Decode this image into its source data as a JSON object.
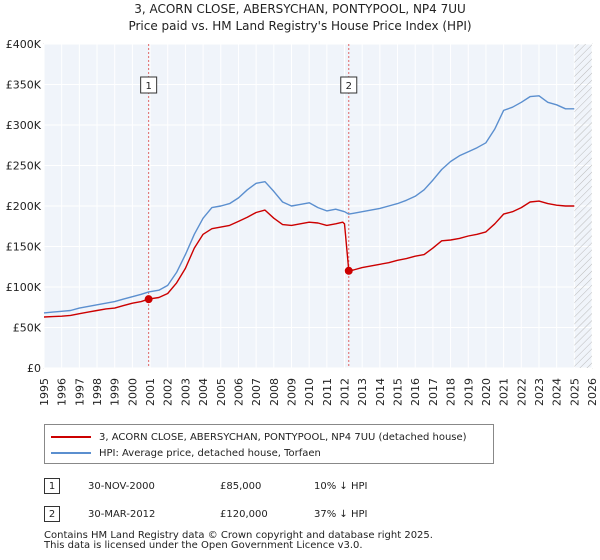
{
  "chart_data": {
    "type": "line",
    "title": "3, ACORN CLOSE, ABERSYCHAN, PONTYPOOL, NP4 7UU",
    "subtitle": "Price paid vs. HM Land Registry's House Price Index (HPI)",
    "xlabel": "",
    "ylabel": "",
    "xlim": [
      1995,
      2026
    ],
    "ylim": [
      0,
      400000
    ],
    "y_ticks": [
      0,
      50000,
      100000,
      150000,
      200000,
      250000,
      300000,
      350000,
      400000
    ],
    "y_tick_labels": [
      "£0",
      "£50K",
      "£100K",
      "£150K",
      "£200K",
      "£250K",
      "£300K",
      "£350K",
      "£400K"
    ],
    "x_ticks": [
      "1995",
      "1996",
      "1997",
      "1998",
      "1999",
      "2000",
      "2001",
      "2002",
      "2003",
      "2004",
      "2005",
      "2006",
      "2007",
      "2008",
      "2009",
      "2010",
      "2011",
      "2012",
      "2013",
      "2014",
      "2015",
      "2016",
      "2017",
      "2018",
      "2019",
      "2020",
      "2021",
      "2022",
      "2023",
      "2024",
      "2025",
      "2026"
    ],
    "grid": true,
    "hatched_from": 2025.0,
    "series": [
      {
        "name": "3, ACORN CLOSE, ABERSYCHAN, PONTYPOOL, NP4 7UU (detached house)",
        "color": "#cc0000",
        "x": [
          1995.0,
          1995.5,
          1996.0,
          1996.5,
          1997.0,
          1997.5,
          1998.0,
          1998.5,
          1999.0,
          1999.5,
          2000.0,
          2000.5,
          2000.92,
          2001.5,
          2002.0,
          2002.5,
          2003.0,
          2003.5,
          2004.0,
          2004.5,
          2005.0,
          2005.5,
          2006.0,
          2006.5,
          2007.0,
          2007.5,
          2008.0,
          2008.5,
          2009.0,
          2009.5,
          2010.0,
          2010.5,
          2011.0,
          2011.5,
          2011.9,
          2012.0,
          2012.24,
          2012.5,
          2013.0,
          2013.5,
          2014.0,
          2014.5,
          2015.0,
          2015.5,
          2016.0,
          2016.5,
          2017.0,
          2017.5,
          2018.0,
          2018.5,
          2019.0,
          2019.5,
          2020.0,
          2020.5,
          2021.0,
          2021.5,
          2022.0,
          2022.5,
          2023.0,
          2023.5,
          2024.0,
          2024.5,
          2025.0
        ],
        "values": [
          63000,
          63500,
          64000,
          65000,
          67000,
          69000,
          71000,
          73000,
          74000,
          77000,
          80000,
          82000,
          85000,
          87000,
          92000,
          105000,
          123000,
          148000,
          165000,
          172000,
          174000,
          176000,
          181000,
          186000,
          192000,
          195000,
          185000,
          177000,
          176000,
          178000,
          180000,
          179000,
          176000,
          178000,
          180000,
          178000,
          120000,
          121000,
          124000,
          126000,
          128000,
          130000,
          133000,
          135000,
          138000,
          140000,
          148000,
          157000,
          158000,
          160000,
          163000,
          165000,
          168000,
          178000,
          190000,
          193000,
          198000,
          205000,
          206000,
          203000,
          201000,
          200000,
          200000
        ]
      },
      {
        "name": "HPI: Average price, detached house, Torfaen",
        "color": "#5b8fcf",
        "x": [
          1995.0,
          1995.5,
          1996.0,
          1996.5,
          1997.0,
          1997.5,
          1998.0,
          1998.5,
          1999.0,
          1999.5,
          2000.0,
          2000.5,
          2000.92,
          2001.5,
          2002.0,
          2002.5,
          2003.0,
          2003.5,
          2004.0,
          2004.5,
          2005.0,
          2005.5,
          2006.0,
          2006.5,
          2007.0,
          2007.5,
          2008.0,
          2008.5,
          2009.0,
          2009.5,
          2010.0,
          2010.5,
          2011.0,
          2011.5,
          2012.0,
          2012.24,
          2012.5,
          2013.0,
          2013.5,
          2014.0,
          2014.5,
          2015.0,
          2015.5,
          2016.0,
          2016.5,
          2017.0,
          2017.5,
          2018.0,
          2018.5,
          2019.0,
          2019.5,
          2020.0,
          2020.5,
          2021.0,
          2021.5,
          2022.0,
          2022.5,
          2023.0,
          2023.5,
          2024.0,
          2024.5,
          2025.0
        ],
        "values": [
          68000,
          69000,
          70000,
          71000,
          74000,
          76000,
          78000,
          80000,
          82000,
          85000,
          88000,
          91000,
          94000,
          96000,
          102000,
          118000,
          140000,
          165000,
          185000,
          198000,
          200000,
          203000,
          210000,
          220000,
          228000,
          230000,
          218000,
          205000,
          200000,
          202000,
          204000,
          198000,
          194000,
          196000,
          193000,
          190000,
          191000,
          193000,
          195000,
          197000,
          200000,
          203000,
          207000,
          212000,
          220000,
          232000,
          245000,
          255000,
          262000,
          267000,
          272000,
          278000,
          295000,
          318000,
          322000,
          328000,
          335000,
          336000,
          328000,
          325000,
          320000,
          320000
        ]
      }
    ],
    "transactions": [
      {
        "marker": "1",
        "x": 2000.92,
        "value": 85000
      },
      {
        "marker": "2",
        "x": 2012.24,
        "value": 120000
      }
    ]
  },
  "legend": {
    "series1_label": "3, ACORN CLOSE, ABERSYCHAN, PONTYPOOL, NP4 7UU (detached house)",
    "series2_label": "HPI: Average price, detached house, Torfaen",
    "series1_color": "#cc0000",
    "series2_color": "#5b8fcf"
  },
  "table": [
    {
      "num": "1",
      "date": "30-NOV-2000",
      "price": "£85,000",
      "hpi": "10% ↓ HPI"
    },
    {
      "num": "2",
      "date": "30-MAR-2012",
      "price": "£120,000",
      "hpi": "37% ↓ HPI"
    }
  ],
  "footer": {
    "line1": "Contains HM Land Registry data © Crown copyright and database right 2025.",
    "line2": "This data is licensed under the Open Government Licence v3.0."
  }
}
